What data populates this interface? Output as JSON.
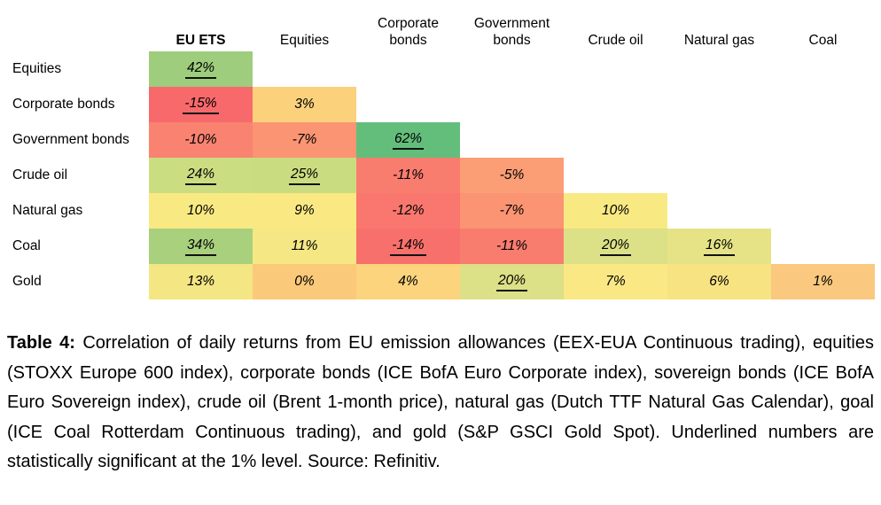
{
  "chart_data": {
    "type": "heatmap",
    "title": "Correlation of daily returns",
    "legend_note": "Underlined numbers are statistically significant at the 1% level",
    "value_unit": "%",
    "columns": [
      {
        "label": "EU ETS",
        "bold": true
      },
      {
        "label": "Equities",
        "bold": false
      },
      {
        "label": "Corporate bonds",
        "bold": false
      },
      {
        "label": "Government bonds",
        "bold": false
      },
      {
        "label": "Crude oil",
        "bold": false
      },
      {
        "label": "Natural gas",
        "bold": false
      },
      {
        "label": "Coal",
        "bold": false
      }
    ],
    "rows": [
      {
        "label": "Equities",
        "cells": [
          {
            "value": 42,
            "text": "42%",
            "significant": true,
            "color": "#9ECD7D"
          }
        ]
      },
      {
        "label": "Corporate bonds",
        "cells": [
          {
            "value": -15,
            "text": "-15%",
            "significant": true,
            "color": "#F8696B"
          },
          {
            "value": 3,
            "text": "3%",
            "significant": false,
            "color": "#FCD17C"
          }
        ]
      },
      {
        "label": "Government bonds",
        "cells": [
          {
            "value": -10,
            "text": "-10%",
            "significant": false,
            "color": "#F98370"
          },
          {
            "value": -7,
            "text": "-7%",
            "significant": false,
            "color": "#FA9473"
          },
          {
            "value": 62,
            "text": "62%",
            "significant": true,
            "color": "#63BE7B"
          }
        ]
      },
      {
        "label": "Crude oil",
        "cells": [
          {
            "value": 24,
            "text": "24%",
            "significant": true,
            "color": "#CBDD81"
          },
          {
            "value": 25,
            "text": "25%",
            "significant": true,
            "color": "#CADC80"
          },
          {
            "value": -11,
            "text": "-11%",
            "significant": false,
            "color": "#F97D6F"
          },
          {
            "value": -5,
            "text": "-5%",
            "significant": false,
            "color": "#FB9D75"
          }
        ]
      },
      {
        "label": "Natural gas",
        "cells": [
          {
            "value": 10,
            "text": "10%",
            "significant": false,
            "color": "#F9E983"
          },
          {
            "value": 9,
            "text": "9%",
            "significant": false,
            "color": "#FAE983"
          },
          {
            "value": -12,
            "text": "-12%",
            "significant": false,
            "color": "#F9776E"
          },
          {
            "value": -7,
            "text": "-7%",
            "significant": false,
            "color": "#FA9473"
          },
          {
            "value": 10,
            "text": "10%",
            "significant": false,
            "color": "#F9E983"
          }
        ]
      },
      {
        "label": "Coal",
        "cells": [
          {
            "value": 34,
            "text": "34%",
            "significant": true,
            "color": "#A8D07D"
          },
          {
            "value": 11,
            "text": "11%",
            "significant": false,
            "color": "#F5E783"
          },
          {
            "value": -14,
            "text": "-14%",
            "significant": true,
            "color": "#F8706C"
          },
          {
            "value": -11,
            "text": "-11%",
            "significant": false,
            "color": "#F97D6F"
          },
          {
            "value": 20,
            "text": "20%",
            "significant": true,
            "color": "#DCE086"
          },
          {
            "value": 16,
            "text": "16%",
            "significant": true,
            "color": "#E5E386"
          }
        ]
      },
      {
        "label": "Gold",
        "cells": [
          {
            "value": 13,
            "text": "13%",
            "significant": false,
            "color": "#F3E683"
          },
          {
            "value": 0,
            "text": "0%",
            "significant": false,
            "color": "#FBC97A"
          },
          {
            "value": 4,
            "text": "4%",
            "significant": false,
            "color": "#FCD47D"
          },
          {
            "value": 20,
            "text": "20%",
            "significant": true,
            "color": "#DCE086"
          },
          {
            "value": 7,
            "text": "7%",
            "significant": false,
            "color": "#F9E884"
          },
          {
            "value": 6,
            "text": "6%",
            "significant": false,
            "color": "#F8E383"
          },
          {
            "value": 1,
            "text": "1%",
            "significant": false,
            "color": "#FAC87E"
          }
        ]
      }
    ],
    "colors": {
      "scale_min_red": "#F8696B",
      "scale_mid_yellow": "#FFEB84",
      "scale_max_green": "#63BE7B"
    }
  },
  "caption": {
    "label": "Table 4:",
    "text": " Correlation of daily returns from EU emission allowances (EEX-EUA Continuous trading), equities (STOXX Europe 600 index), corporate bonds (ICE BofA Euro Corporate index), sovereign bonds (ICE BofA Euro Sovereign index), crude oil (Brent 1-month price), natural gas (Dutch TTF Natural Gas Calendar), goal (ICE Coal Rotterdam Continuous trading), and gold (S&P GSCI Gold Spot). Underlined numbers are statistically significant at the 1% level. Source: Refinitiv."
  }
}
